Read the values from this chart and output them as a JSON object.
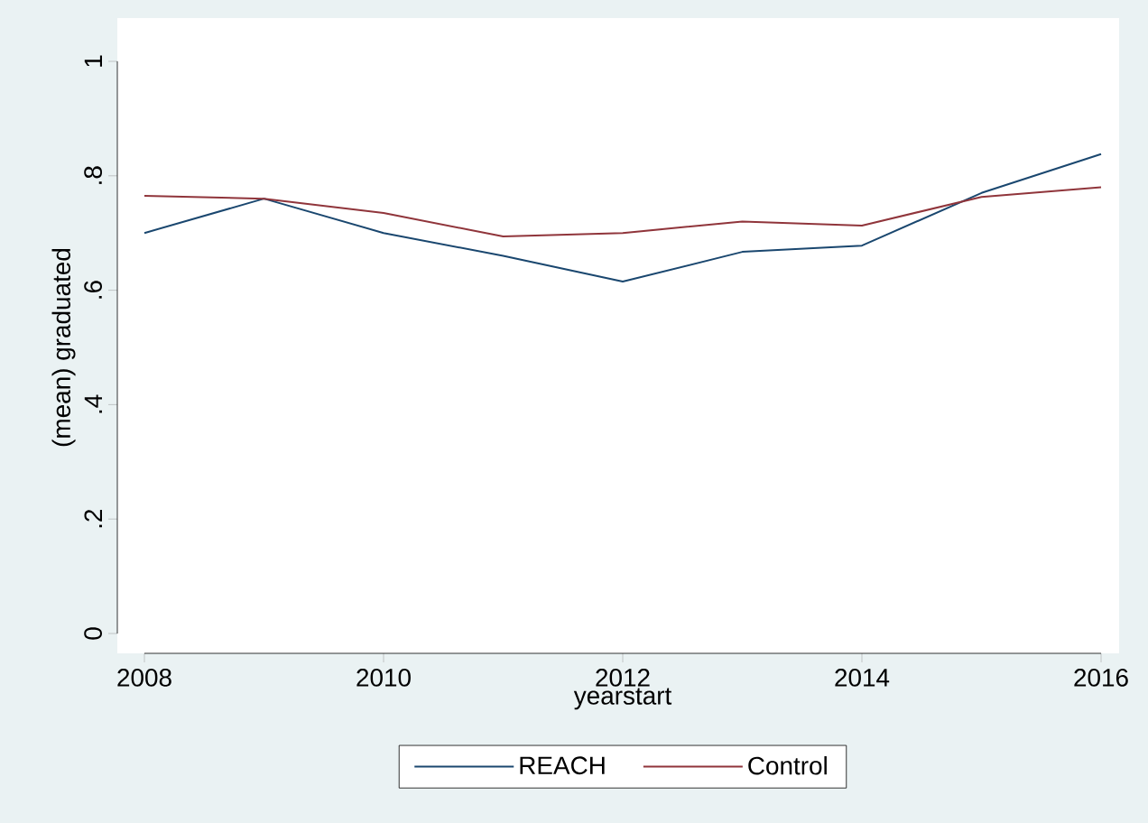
{
  "chart_data": {
    "type": "line",
    "xlabel": "yearstart",
    "ylabel": "(mean) graduated",
    "x": [
      2008,
      2009,
      2010,
      2011,
      2012,
      2013,
      2014,
      2015,
      2016
    ],
    "series": [
      {
        "name": "REACH",
        "color": "#1a476f",
        "values": [
          0.7,
          0.76,
          0.7,
          0.66,
          0.615,
          0.667,
          0.678,
          0.77,
          0.838
        ]
      },
      {
        "name": "Control",
        "color": "#90353b",
        "values": [
          0.765,
          0.76,
          0.735,
          0.694,
          0.7,
          0.72,
          0.713,
          0.763,
          0.78
        ]
      }
    ],
    "xlim": [
      2008,
      2016
    ],
    "ylim": [
      0,
      1
    ],
    "xticks": [
      2008,
      2010,
      2012,
      2014,
      2016
    ],
    "yticks": [
      {
        "value": 0,
        "label": "0"
      },
      {
        "value": 0.2,
        "label": ".2"
      },
      {
        "value": 0.4,
        "label": ".4"
      },
      {
        "value": 0.6,
        "label": ".6"
      },
      {
        "value": 0.8,
        "label": ".8"
      },
      {
        "value": 1,
        "label": "1"
      }
    ],
    "legend": "bottom"
  }
}
